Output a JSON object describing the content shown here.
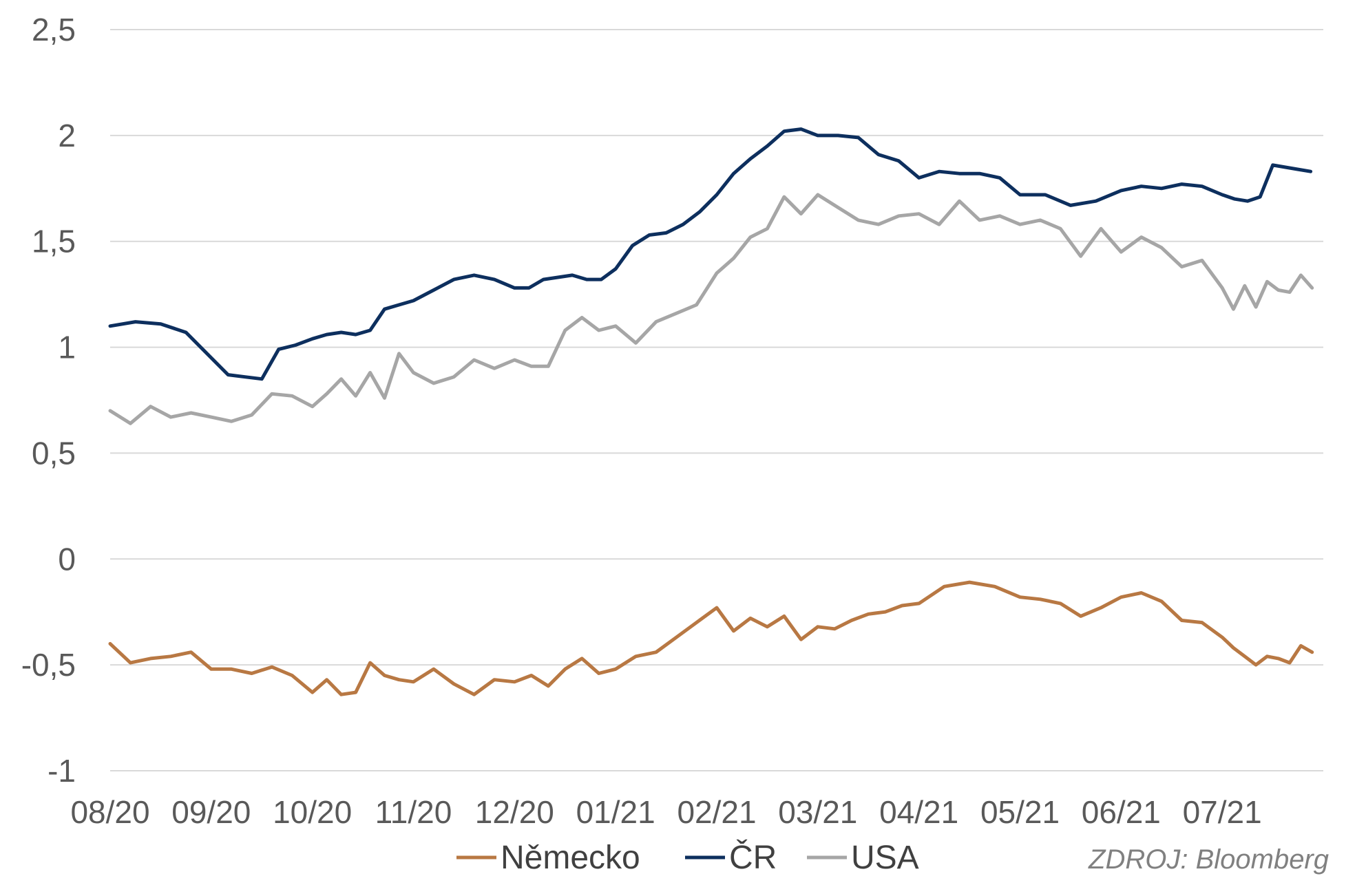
{
  "chart_data": {
    "type": "line",
    "title": "",
    "xlabel": "",
    "ylabel": "",
    "x_ticks": [
      "08/20",
      "09/20",
      "10/20",
      "11/20",
      "12/20",
      "01/21",
      "02/21",
      "03/21",
      "04/21",
      "05/21",
      "06/21",
      "07/21"
    ],
    "x_range": [
      "08/20",
      "07/21"
    ],
    "y_ticks": [
      "2,5",
      "2",
      "1,5",
      "1",
      "0,5",
      "0",
      "-0,5",
      "-1"
    ],
    "y_tick_values": [
      2.5,
      2,
      1.5,
      1,
      0.5,
      0,
      -0.5,
      -1
    ],
    "ylim": [
      -1,
      2.5
    ],
    "grid": "horizontal",
    "legend_position": "bottom",
    "series": [
      {
        "name": "Německo",
        "color": "#b87843",
        "points": [
          [
            "08/20",
            -0.4
          ],
          [
            "08/20",
            -0.49
          ],
          [
            "08/20",
            -0.47
          ],
          [
            "08/20",
            -0.46
          ],
          [
            "08/20",
            -0.44
          ],
          [
            "09/20",
            -0.52
          ],
          [
            "09/20",
            -0.52
          ],
          [
            "09/20",
            -0.54
          ],
          [
            "09/20",
            -0.51
          ],
          [
            "09/20",
            -0.55
          ],
          [
            "10/20",
            -0.63
          ],
          [
            "10/20",
            -0.57
          ],
          [
            "10/20",
            -0.64
          ],
          [
            "10/20",
            -0.63
          ],
          [
            "10/20",
            -0.49
          ],
          [
            "10/20",
            -0.55
          ],
          [
            "10/20",
            -0.57
          ],
          [
            "11/20",
            -0.58
          ],
          [
            "11/20",
            -0.52
          ],
          [
            "11/20",
            -0.59
          ],
          [
            "11/20",
            -0.64
          ],
          [
            "11/20",
            -0.57
          ],
          [
            "12/20",
            -0.58
          ],
          [
            "12/20",
            -0.55
          ],
          [
            "12/20",
            -0.6
          ],
          [
            "12/20",
            -0.52
          ],
          [
            "12/20",
            -0.47
          ],
          [
            "12/20",
            -0.54
          ],
          [
            "01/21",
            -0.52
          ],
          [
            "01/21",
            -0.46
          ],
          [
            "01/21",
            -0.44
          ],
          [
            "01/21",
            -0.37
          ],
          [
            "01/21",
            -0.3
          ],
          [
            "02/21",
            -0.23
          ],
          [
            "02/21",
            -0.34
          ],
          [
            "02/21",
            -0.28
          ],
          [
            "02/21",
            -0.32
          ],
          [
            "02/21",
            -0.27
          ],
          [
            "02/21",
            -0.38
          ],
          [
            "03/21",
            -0.32
          ],
          [
            "03/21",
            -0.33
          ],
          [
            "03/21",
            -0.29
          ],
          [
            "03/21",
            -0.26
          ],
          [
            "03/21",
            -0.25
          ],
          [
            "03/21",
            -0.22
          ],
          [
            "04/21",
            -0.21
          ],
          [
            "04/21",
            -0.13
          ],
          [
            "04/21",
            -0.11
          ],
          [
            "04/21",
            -0.13
          ],
          [
            "05/21",
            -0.18
          ],
          [
            "05/21",
            -0.19
          ],
          [
            "05/21",
            -0.21
          ],
          [
            "05/21",
            -0.27
          ],
          [
            "05/21",
            -0.23
          ],
          [
            "06/21",
            -0.18
          ],
          [
            "06/21",
            -0.16
          ],
          [
            "06/21",
            -0.2
          ],
          [
            "06/21",
            -0.29
          ],
          [
            "06/21",
            -0.3
          ],
          [
            "07/21",
            -0.37
          ],
          [
            "07/21",
            -0.42
          ],
          [
            "07/21",
            -0.46
          ],
          [
            "07/21",
            -0.5
          ],
          [
            "07/21",
            -0.46
          ],
          [
            "07/21",
            -0.47
          ],
          [
            "07/21",
            -0.49
          ],
          [
            "07/21",
            -0.41
          ],
          [
            "07/21",
            -0.44
          ]
        ]
      },
      {
        "name": "ČR",
        "color": "#0d2f5e",
        "points": [
          [
            "08/20",
            1.1
          ],
          [
            "08/20",
            1.12
          ],
          [
            "08/20",
            1.11
          ],
          [
            "08/20",
            1.07
          ],
          [
            "09/20",
            0.95
          ],
          [
            "09/20",
            0.87
          ],
          [
            "09/20",
            0.86
          ],
          [
            "09/20",
            0.85
          ],
          [
            "09/20",
            0.99
          ],
          [
            "09/20",
            1.01
          ],
          [
            "10/20",
            1.04
          ],
          [
            "10/20",
            1.06
          ],
          [
            "10/20",
            1.07
          ],
          [
            "10/20",
            1.06
          ],
          [
            "10/20",
            1.08
          ],
          [
            "10/20",
            1.18
          ],
          [
            "10/20",
            1.2
          ],
          [
            "11/20",
            1.22
          ],
          [
            "11/20",
            1.27
          ],
          [
            "11/20",
            1.32
          ],
          [
            "11/20",
            1.34
          ],
          [
            "11/20",
            1.32
          ],
          [
            "12/20",
            1.28
          ],
          [
            "12/20",
            1.28
          ],
          [
            "12/20",
            1.32
          ],
          [
            "12/20",
            1.33
          ],
          [
            "12/20",
            1.34
          ],
          [
            "12/20",
            1.32
          ],
          [
            "12/20",
            1.32
          ],
          [
            "01/21",
            1.37
          ],
          [
            "01/21",
            1.48
          ],
          [
            "01/21",
            1.53
          ],
          [
            "01/21",
            1.54
          ],
          [
            "01/21",
            1.58
          ],
          [
            "01/21",
            1.64
          ],
          [
            "02/21",
            1.72
          ],
          [
            "02/21",
            1.82
          ],
          [
            "02/21",
            1.89
          ],
          [
            "02/21",
            1.95
          ],
          [
            "02/21",
            2.02
          ],
          [
            "02/21",
            2.03
          ],
          [
            "03/21",
            2.0
          ],
          [
            "03/21",
            2.0
          ],
          [
            "03/21",
            1.99
          ],
          [
            "03/21",
            1.91
          ],
          [
            "03/21",
            1.88
          ],
          [
            "04/21",
            1.8
          ],
          [
            "04/21",
            1.83
          ],
          [
            "04/21",
            1.82
          ],
          [
            "04/21",
            1.82
          ],
          [
            "04/21",
            1.8
          ],
          [
            "05/21",
            1.72
          ],
          [
            "05/21",
            1.72
          ],
          [
            "05/21",
            1.67
          ],
          [
            "05/21",
            1.69
          ],
          [
            "06/21",
            1.74
          ],
          [
            "06/21",
            1.76
          ],
          [
            "06/21",
            1.75
          ],
          [
            "06/21",
            1.77
          ],
          [
            "06/21",
            1.76
          ],
          [
            "07/21",
            1.72
          ],
          [
            "07/21",
            1.7
          ],
          [
            "07/21",
            1.69
          ],
          [
            "07/21",
            1.71
          ],
          [
            "07/21",
            1.86
          ],
          [
            "07/21",
            1.85
          ],
          [
            "07/21",
            1.84
          ],
          [
            "07/21",
            1.83
          ]
        ]
      },
      {
        "name": "USA",
        "color": "#a6a6a6",
        "points": [
          [
            "08/20",
            0.7
          ],
          [
            "08/20",
            0.64
          ],
          [
            "08/20",
            0.72
          ],
          [
            "08/20",
            0.67
          ],
          [
            "08/20",
            0.69
          ],
          [
            "09/20",
            0.67
          ],
          [
            "09/20",
            0.65
          ],
          [
            "09/20",
            0.68
          ],
          [
            "09/20",
            0.78
          ],
          [
            "09/20",
            0.77
          ],
          [
            "10/20",
            0.72
          ],
          [
            "10/20",
            0.78
          ],
          [
            "10/20",
            0.85
          ],
          [
            "10/20",
            0.77
          ],
          [
            "10/20",
            0.88
          ],
          [
            "10/20",
            0.76
          ],
          [
            "10/20",
            0.97
          ],
          [
            "11/20",
            0.88
          ],
          [
            "11/20",
            0.83
          ],
          [
            "11/20",
            0.86
          ],
          [
            "11/20",
            0.94
          ],
          [
            "11/20",
            0.9
          ],
          [
            "12/20",
            0.94
          ],
          [
            "12/20",
            0.91
          ],
          [
            "12/20",
            0.91
          ],
          [
            "12/20",
            1.08
          ],
          [
            "12/20",
            1.14
          ],
          [
            "12/20",
            1.08
          ],
          [
            "01/21",
            1.1
          ],
          [
            "01/21",
            1.02
          ],
          [
            "01/21",
            1.12
          ],
          [
            "01/21",
            1.16
          ],
          [
            "01/21",
            1.2
          ],
          [
            "02/21",
            1.35
          ],
          [
            "02/21",
            1.42
          ],
          [
            "02/21",
            1.52
          ],
          [
            "02/21",
            1.56
          ],
          [
            "02/21",
            1.71
          ],
          [
            "02/21",
            1.63
          ],
          [
            "03/21",
            1.72
          ],
          [
            "03/21",
            1.66
          ],
          [
            "03/21",
            1.6
          ],
          [
            "03/21",
            1.58
          ],
          [
            "03/21",
            1.62
          ],
          [
            "04/21",
            1.63
          ],
          [
            "04/21",
            1.58
          ],
          [
            "04/21",
            1.69
          ],
          [
            "04/21",
            1.6
          ],
          [
            "04/21",
            1.62
          ],
          [
            "05/21",
            1.58
          ],
          [
            "05/21",
            1.6
          ],
          [
            "05/21",
            1.56
          ],
          [
            "05/21",
            1.43
          ],
          [
            "05/21",
            1.56
          ],
          [
            "06/21",
            1.45
          ],
          [
            "06/21",
            1.52
          ],
          [
            "06/21",
            1.47
          ],
          [
            "06/21",
            1.38
          ],
          [
            "06/21",
            1.41
          ],
          [
            "07/21",
            1.28
          ],
          [
            "07/21",
            1.18
          ],
          [
            "07/21",
            1.29
          ],
          [
            "07/21",
            1.19
          ],
          [
            "07/21",
            1.31
          ],
          [
            "07/21",
            1.27
          ],
          [
            "07/21",
            1.26
          ],
          [
            "07/21",
            1.34
          ],
          [
            "07/21",
            1.28
          ]
        ]
      }
    ],
    "source_note": "ZDROJ: Bloomberg"
  }
}
